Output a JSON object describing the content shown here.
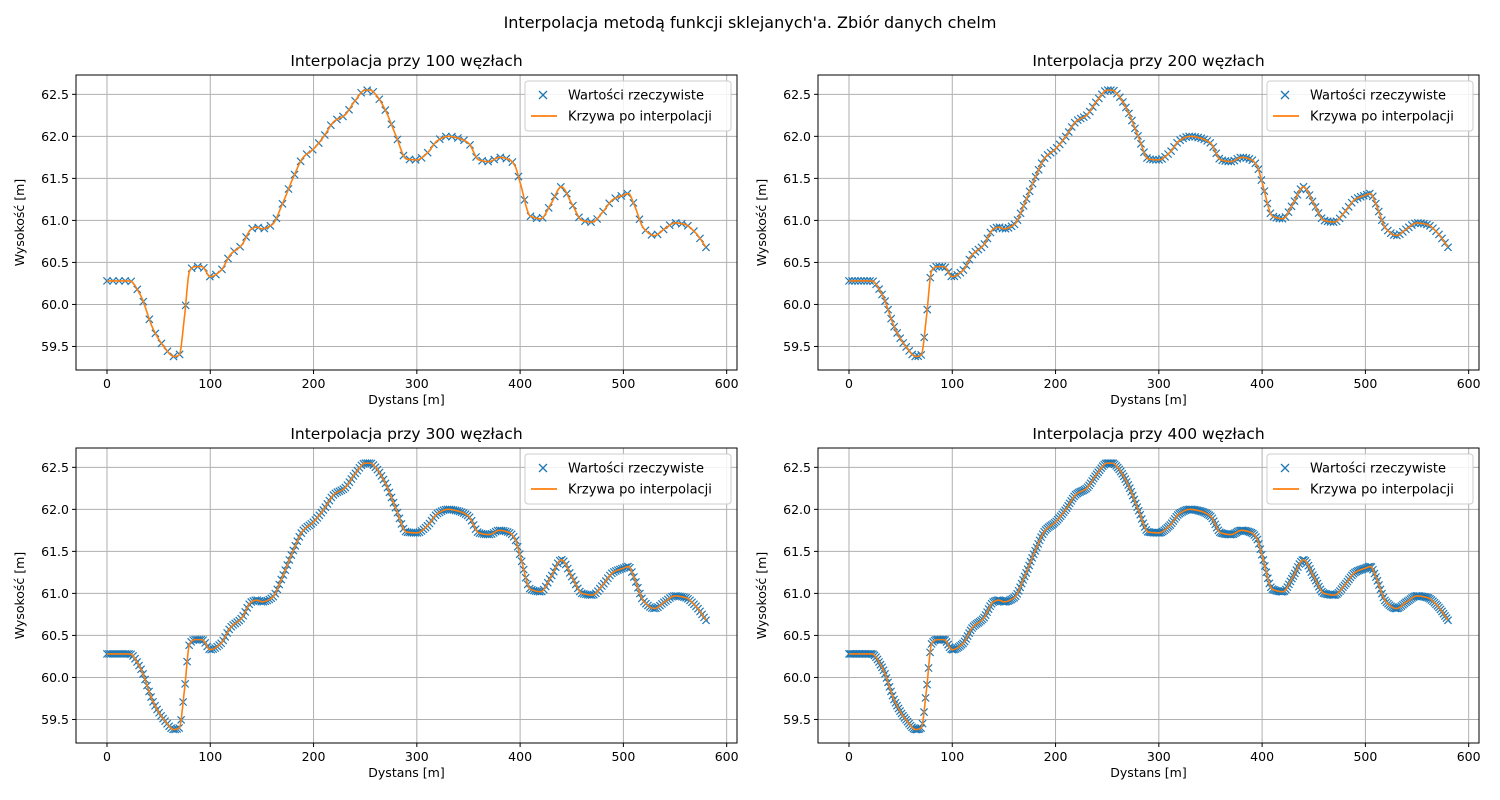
{
  "figure": {
    "suptitle": "Interpolacja metodą funkcji sklejanych'a. Zbiór danych chelm"
  },
  "colors": {
    "measured": "#1f77b4",
    "interpolated": "#ff7f0e",
    "grid": "#b0b0b0",
    "legend_border": "#cccccc"
  },
  "legend": {
    "measured": "Wartości rzeczywiste",
    "interpolated": "Krzywa po interpolacji",
    "location": "upper-right"
  },
  "profile_knots": {
    "x": [
      0,
      22,
      32,
      45,
      55,
      65,
      70,
      75,
      80,
      85,
      92,
      100,
      110,
      120,
      130,
      140,
      145,
      150,
      160,
      170,
      180,
      190,
      200,
      210,
      220,
      230,
      240,
      250,
      255,
      260,
      270,
      280,
      290,
      300,
      310,
      320,
      330,
      340,
      350,
      360,
      370,
      380,
      390,
      395,
      400,
      410,
      420,
      430,
      440,
      450,
      460,
      470,
      480,
      490,
      500,
      505,
      510,
      520,
      530,
      540,
      550,
      560,
      570,
      580
    ],
    "y": [
      60.28,
      60.28,
      60.12,
      59.7,
      59.5,
      59.38,
      59.4,
      59.85,
      60.4,
      60.45,
      60.45,
      60.33,
      60.4,
      60.6,
      60.7,
      60.9,
      60.92,
      60.9,
      60.95,
      61.2,
      61.5,
      61.75,
      61.85,
      62.0,
      62.18,
      62.25,
      62.42,
      62.55,
      62.55,
      62.5,
      62.3,
      62.0,
      61.73,
      61.72,
      61.8,
      61.95,
      62.0,
      61.98,
      61.92,
      61.72,
      61.7,
      61.75,
      61.72,
      61.65,
      61.45,
      61.05,
      61.02,
      61.2,
      61.4,
      61.2,
      61.0,
      60.98,
      61.1,
      61.25,
      61.3,
      61.32,
      61.2,
      60.9,
      60.82,
      60.9,
      60.97,
      60.95,
      60.85,
      60.68
    ]
  },
  "chart_data": [
    {
      "type": "line",
      "title": "Interpolacja przy 100 węzłach",
      "xlabel": "Dystans [m]",
      "ylabel": "Wysokość [m]",
      "xlim": [
        -30,
        610
      ],
      "ylim": [
        59.22,
        62.73
      ],
      "xticks": [
        0,
        100,
        200,
        300,
        400,
        500,
        600
      ],
      "yticks": [
        59.5,
        60.0,
        60.5,
        61.0,
        61.5,
        62.0,
        62.5
      ],
      "grid": true,
      "legend": "upper-right",
      "series": [
        {
          "name": "Wartości rzeczywiste",
          "marker": "x",
          "x_range": [
            0,
            580
          ],
          "n_points": 100
        },
        {
          "name": "Krzywa po interpolacji",
          "style": "line",
          "x_range": [
            0,
            580
          ]
        }
      ]
    },
    {
      "type": "line",
      "title": "Interpolacja przy 200 węzłach",
      "xlabel": "Dystans [m]",
      "ylabel": "Wysokość [m]",
      "xlim": [
        -30,
        610
      ],
      "ylim": [
        59.22,
        62.73
      ],
      "xticks": [
        0,
        100,
        200,
        300,
        400,
        500,
        600
      ],
      "yticks": [
        59.5,
        60.0,
        60.5,
        61.0,
        61.5,
        62.0,
        62.5
      ],
      "grid": true,
      "legend": "upper-right",
      "series": [
        {
          "name": "Wartości rzeczywiste",
          "marker": "x",
          "x_range": [
            0,
            580
          ],
          "n_points": 200
        },
        {
          "name": "Krzywa po interpolacji",
          "style": "line",
          "x_range": [
            0,
            580
          ]
        }
      ]
    },
    {
      "type": "line",
      "title": "Interpolacja przy 300 węzłach",
      "xlabel": "Dystans [m]",
      "ylabel": "Wysokość [m]",
      "xlim": [
        -30,
        610
      ],
      "ylim": [
        59.22,
        62.73
      ],
      "xticks": [
        0,
        100,
        200,
        300,
        400,
        500,
        600
      ],
      "yticks": [
        59.5,
        60.0,
        60.5,
        61.0,
        61.5,
        62.0,
        62.5
      ],
      "grid": true,
      "legend": "upper-right",
      "series": [
        {
          "name": "Wartości rzeczywiste",
          "marker": "x",
          "x_range": [
            0,
            580
          ],
          "n_points": 300
        },
        {
          "name": "Krzywa po interpolacji",
          "style": "line",
          "x_range": [
            0,
            580
          ]
        }
      ]
    },
    {
      "type": "line",
      "title": "Interpolacja przy 400 węzłach",
      "xlabel": "Dystans [m]",
      "ylabel": "Wysokość [m]",
      "xlim": [
        -30,
        610
      ],
      "ylim": [
        59.22,
        62.73
      ],
      "xticks": [
        0,
        100,
        200,
        300,
        400,
        500,
        600
      ],
      "yticks": [
        59.5,
        60.0,
        60.5,
        61.0,
        61.5,
        62.0,
        62.5
      ],
      "grid": true,
      "legend": "upper-right",
      "series": [
        {
          "name": "Wartości rzeczywiste",
          "marker": "x",
          "x_range": [
            0,
            580
          ],
          "n_points": 400
        },
        {
          "name": "Krzywa po interpolacji",
          "style": "line",
          "x_range": [
            0,
            580
          ]
        }
      ]
    }
  ]
}
